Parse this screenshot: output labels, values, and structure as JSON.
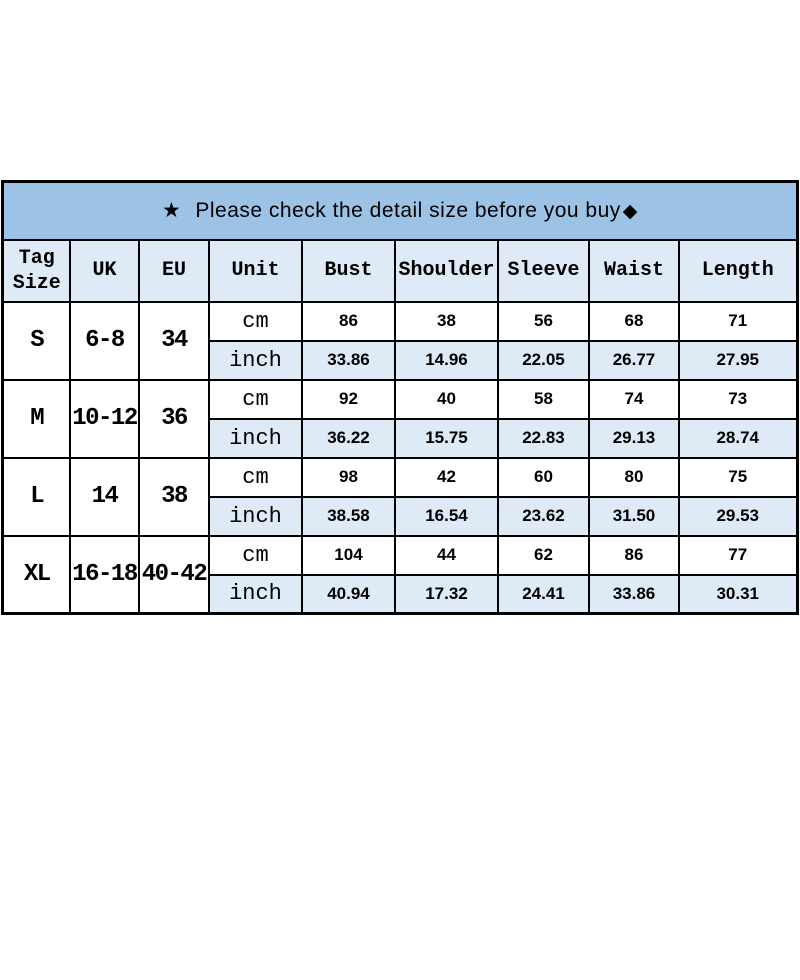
{
  "banner": {
    "star": "★",
    "text": "Please check the detail size before you buy",
    "diamond": "◆"
  },
  "colors": {
    "banner_bg": "#9CC2E5",
    "shaded_cell_bg": "#DEEAF6",
    "border": "#000000",
    "text": "#000000"
  },
  "chart_data": {
    "type": "table",
    "title": "★ Please check the detail size before you buy◆",
    "columns": [
      "Tag Size",
      "UK",
      "EU",
      "Unit",
      "Bust",
      "Shoulder",
      "Sleeve",
      "Waist",
      "Length"
    ],
    "unit_labels": [
      "cm",
      "inch"
    ],
    "sizes": [
      {
        "tag": "S",
        "uk": "6-8",
        "eu": "34",
        "cm": [
          "86",
          "38",
          "56",
          "68",
          "71"
        ],
        "inch": [
          "33.86",
          "14.96",
          "22.05",
          "26.77",
          "27.95"
        ]
      },
      {
        "tag": "M",
        "uk": "10-12",
        "eu": "36",
        "cm": [
          "92",
          "40",
          "58",
          "74",
          "73"
        ],
        "inch": [
          "36.22",
          "15.75",
          "22.83",
          "29.13",
          "28.74"
        ]
      },
      {
        "tag": "L",
        "uk": "14",
        "eu": "38",
        "cm": [
          "98",
          "42",
          "60",
          "80",
          "75"
        ],
        "inch": [
          "38.58",
          "16.54",
          "23.62",
          "31.50",
          "29.53"
        ]
      },
      {
        "tag": "XL",
        "uk": "16-18",
        "eu": "40-42",
        "cm": [
          "104",
          "44",
          "62",
          "86",
          "77"
        ],
        "inch": [
          "40.94",
          "17.32",
          "24.41",
          "33.86",
          "30.31"
        ]
      }
    ]
  }
}
